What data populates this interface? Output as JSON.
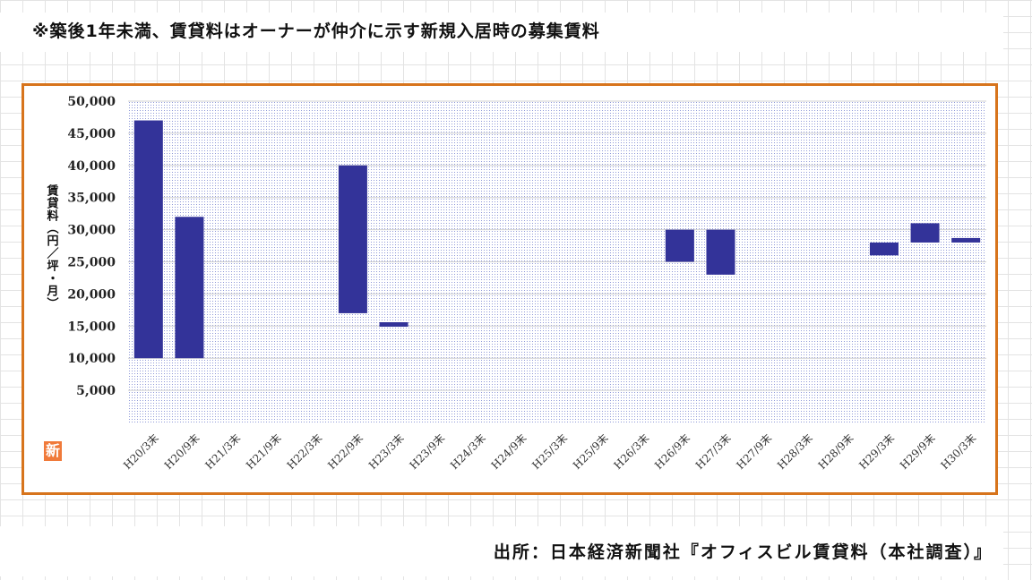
{
  "header": {
    "note": "※築後1年未満、賃貸料はオーナーが仲介に示す新規入居時の募集賃料"
  },
  "footer": {
    "source": "出所：日本経済新聞社『オフィスビル賃貸料（本社調査）』"
  },
  "badge": {
    "label": "新"
  },
  "colors": {
    "bar": "#333399",
    "frame": "#d7741c",
    "plot_dots": "#8f99d8"
  },
  "chart_data": {
    "type": "bar",
    "subtype": "floating-range",
    "categories": [
      "H20/3末",
      "H20/9末",
      "H21/3末",
      "H21/9末",
      "H22/3末",
      "H22/9末",
      "H23/3末",
      "H23/9末",
      "H24/3末",
      "H24/9末",
      "H25/3末",
      "H25/9末",
      "H26/3末",
      "H26/9末",
      "H27/3末",
      "H27/9末",
      "H28/3末",
      "H28/9末",
      "H29/3末",
      "H29/9末",
      "H30/3末"
    ],
    "series": [
      {
        "low": [
          10000,
          10000,
          null,
          null,
          null,
          17000,
          15000,
          null,
          null,
          null,
          null,
          null,
          null,
          25000,
          23000,
          null,
          null,
          null,
          26000,
          28000,
          28000
        ],
        "high": [
          47000,
          32000,
          null,
          null,
          null,
          40000,
          15500,
          null,
          null,
          null,
          null,
          null,
          null,
          30000,
          30000,
          null,
          null,
          null,
          28000,
          31000,
          28700
        ]
      }
    ],
    "ylabel": "賃貸料（円／坪・月）",
    "ylim": [
      0,
      50000
    ],
    "yticks": [
      "50,000",
      "45,000",
      "40,000",
      "35,000",
      "30,000",
      "25,000",
      "20,000",
      "15,000",
      "10,000",
      "5,000"
    ],
    "ytick_values": [
      50000,
      45000,
      40000,
      35000,
      30000,
      25000,
      20000,
      15000,
      10000,
      5000
    ],
    "grid": true,
    "legend": "none"
  }
}
